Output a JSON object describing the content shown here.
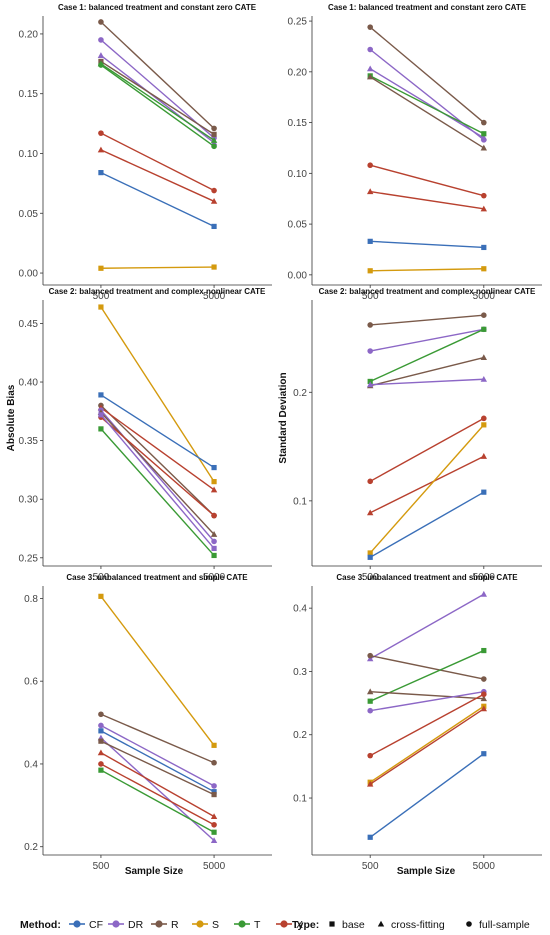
{
  "colors": {
    "CF": "#3a6fb8",
    "DR": "#8c67c6",
    "R": "#7a5a4a",
    "S": "#d49a0e",
    "T": "#3a9a35",
    "X": "#b8412f"
  },
  "legend": {
    "method_title": "Method:",
    "methods": [
      "CF",
      "DR",
      "R",
      "S",
      "T",
      "X"
    ],
    "type_title": "Type:",
    "types": [
      {
        "key": "base",
        "label": "base",
        "shape": "square"
      },
      {
        "key": "cf",
        "label": "cross-fitting",
        "shape": "triangle"
      },
      {
        "key": "fs",
        "label": "full-sample",
        "shape": "circle"
      }
    ]
  },
  "labels": {
    "x_label": "Sample Size",
    "y_label_left": "Absolute Bias",
    "y_label_right": "Standard Deviation"
  },
  "chart_data": [
    {
      "type": "line",
      "title": "Case 1: balanced treatment and constant zero CATE",
      "x": [
        "500",
        "5000"
      ],
      "ylim": [
        -0.01,
        0.215
      ],
      "yticks": [
        "0.00",
        "0.05",
        "0.10",
        "0.15",
        "0.20"
      ],
      "series": [
        {
          "method": "CF",
          "type": "base",
          "values": [
            0.084,
            0.039
          ]
        },
        {
          "method": "DR",
          "type": "cf",
          "values": [
            0.182,
            0.109
          ]
        },
        {
          "method": "DR",
          "type": "fs",
          "values": [
            0.195,
            0.113
          ]
        },
        {
          "method": "R",
          "type": "fs",
          "values": [
            0.21,
            0.121
          ]
        },
        {
          "method": "R",
          "type": "base",
          "values": [
            0.177,
            0.116
          ]
        },
        {
          "method": "T",
          "type": "cf",
          "values": [
            0.175,
            0.111
          ]
        },
        {
          "method": "T",
          "type": "fs",
          "values": [
            0.174,
            0.106
          ]
        },
        {
          "method": "X",
          "type": "fs",
          "values": [
            0.117,
            0.069
          ]
        },
        {
          "method": "X",
          "type": "cf",
          "values": [
            0.103,
            0.06
          ]
        },
        {
          "method": "S",
          "type": "base",
          "values": [
            0.004,
            0.005
          ]
        }
      ]
    },
    {
      "type": "line",
      "title": "Case 1: balanced treatment and constant zero CATE",
      "x": [
        "500",
        "5000"
      ],
      "ylim": [
        -0.01,
        0.255
      ],
      "yticks": [
        "0.00",
        "0.05",
        "0.10",
        "0.15",
        "0.20",
        "0.25"
      ],
      "series": [
        {
          "method": "R",
          "type": "fs",
          "values": [
            0.244,
            0.15
          ]
        },
        {
          "method": "DR",
          "type": "fs",
          "values": [
            0.222,
            0.133
          ]
        },
        {
          "method": "DR",
          "type": "cf",
          "values": [
            0.203,
            0.135
          ]
        },
        {
          "method": "T",
          "type": "base",
          "values": [
            0.196,
            0.139
          ]
        },
        {
          "method": "R",
          "type": "cf",
          "values": [
            0.195,
            0.125
          ]
        },
        {
          "method": "X",
          "type": "fs",
          "values": [
            0.108,
            0.078
          ]
        },
        {
          "method": "X",
          "type": "cf",
          "values": [
            0.082,
            0.065
          ]
        },
        {
          "method": "CF",
          "type": "base",
          "values": [
            0.033,
            0.027
          ]
        },
        {
          "method": "S",
          "type": "base",
          "values": [
            0.004,
            0.006
          ]
        }
      ]
    },
    {
      "type": "line",
      "title": "Case 2: balanced treatment and complex nonlinear CATE",
      "x": [
        "500",
        "5000"
      ],
      "ylim": [
        0.243,
        0.47
      ],
      "yticks": [
        "0.25",
        "0.30",
        "0.35",
        "0.40",
        "0.45"
      ],
      "series": [
        {
          "method": "S",
          "type": "base",
          "values": [
            0.464,
            0.315
          ]
        },
        {
          "method": "CF",
          "type": "base",
          "values": [
            0.389,
            0.327
          ]
        },
        {
          "method": "R",
          "type": "fs",
          "values": [
            0.38,
            0.286
          ]
        },
        {
          "method": "X",
          "type": "cf",
          "values": [
            0.378,
            0.308
          ]
        },
        {
          "method": "DR",
          "type": "fs",
          "values": [
            0.376,
            0.264
          ]
        },
        {
          "method": "R",
          "type": "cf",
          "values": [
            0.374,
            0.27
          ]
        },
        {
          "method": "X",
          "type": "fs",
          "values": [
            0.37,
            0.286
          ]
        },
        {
          "method": "DR",
          "type": "base",
          "values": [
            0.372,
            0.258
          ]
        },
        {
          "method": "T",
          "type": "base",
          "values": [
            0.36,
            0.252
          ]
        }
      ]
    },
    {
      "type": "line",
      "title": "Case 2: balanced treatment and complex nonlinear CATE",
      "x": [
        "500",
        "5000"
      ],
      "ylim": [
        0.04,
        0.285
      ],
      "yticks": [
        "0.1",
        "0.2"
      ],
      "series": [
        {
          "method": "R",
          "type": "fs",
          "values": [
            0.262,
            0.271
          ]
        },
        {
          "method": "DR",
          "type": "fs",
          "values": [
            0.238,
            0.258
          ]
        },
        {
          "method": "T",
          "type": "base",
          "values": [
            0.21,
            0.258
          ]
        },
        {
          "method": "R",
          "type": "cf",
          "values": [
            0.206,
            0.232
          ]
        },
        {
          "method": "DR",
          "type": "cf",
          "values": [
            0.207,
            0.212
          ]
        },
        {
          "method": "X",
          "type": "fs",
          "values": [
            0.118,
            0.176
          ]
        },
        {
          "method": "X",
          "type": "cf",
          "values": [
            0.089,
            0.141
          ]
        },
        {
          "method": "S",
          "type": "base",
          "values": [
            0.052,
            0.17
          ]
        },
        {
          "method": "CF",
          "type": "base",
          "values": [
            0.048,
            0.108
          ]
        }
      ]
    },
    {
      "type": "line",
      "title": "Case 3: unbalanced treatment and simple CATE",
      "x": [
        "500",
        "5000"
      ],
      "ylim": [
        0.18,
        0.83
      ],
      "yticks": [
        "0.2",
        "0.4",
        "0.6",
        "0.8"
      ],
      "series": [
        {
          "method": "S",
          "type": "base",
          "values": [
            0.805,
            0.445
          ]
        },
        {
          "method": "R",
          "type": "fs",
          "values": [
            0.52,
            0.403
          ]
        },
        {
          "method": "DR",
          "type": "fs",
          "values": [
            0.493,
            0.347
          ]
        },
        {
          "method": "CF",
          "type": "base",
          "values": [
            0.48,
            0.333
          ]
        },
        {
          "method": "DR",
          "type": "cf",
          "values": [
            0.463,
            0.215
          ]
        },
        {
          "method": "X",
          "type": "cf",
          "values": [
            0.427,
            0.273
          ]
        },
        {
          "method": "X",
          "type": "fs",
          "values": [
            0.4,
            0.253
          ]
        },
        {
          "method": "T",
          "type": "base",
          "values": [
            0.385,
            0.235
          ]
        },
        {
          "method": "R",
          "type": "base",
          "values": [
            0.455,
            0.326
          ]
        }
      ]
    },
    {
      "type": "line",
      "title": "Case 3: unbalanced treatment and simple CATE",
      "x": [
        "500",
        "5000"
      ],
      "ylim": [
        0.01,
        0.435
      ],
      "yticks": [
        "0.1",
        "0.2",
        "0.3",
        "0.4"
      ],
      "series": [
        {
          "method": "DR",
          "type": "cf",
          "values": [
            0.32,
            0.422
          ]
        },
        {
          "method": "R",
          "type": "fs",
          "values": [
            0.325,
            0.288
          ]
        },
        {
          "method": "T",
          "type": "base",
          "values": [
            0.253,
            0.333
          ]
        },
        {
          "method": "R",
          "type": "cf",
          "values": [
            0.268,
            0.257
          ]
        },
        {
          "method": "DR",
          "type": "fs",
          "values": [
            0.238,
            0.268
          ]
        },
        {
          "method": "S",
          "type": "base",
          "values": [
            0.125,
            0.245
          ]
        },
        {
          "method": "X",
          "type": "fs",
          "values": [
            0.167,
            0.264
          ]
        },
        {
          "method": "X",
          "type": "cf",
          "values": [
            0.122,
            0.241
          ]
        },
        {
          "method": "CF",
          "type": "base",
          "values": [
            0.038,
            0.17
          ]
        }
      ]
    }
  ]
}
